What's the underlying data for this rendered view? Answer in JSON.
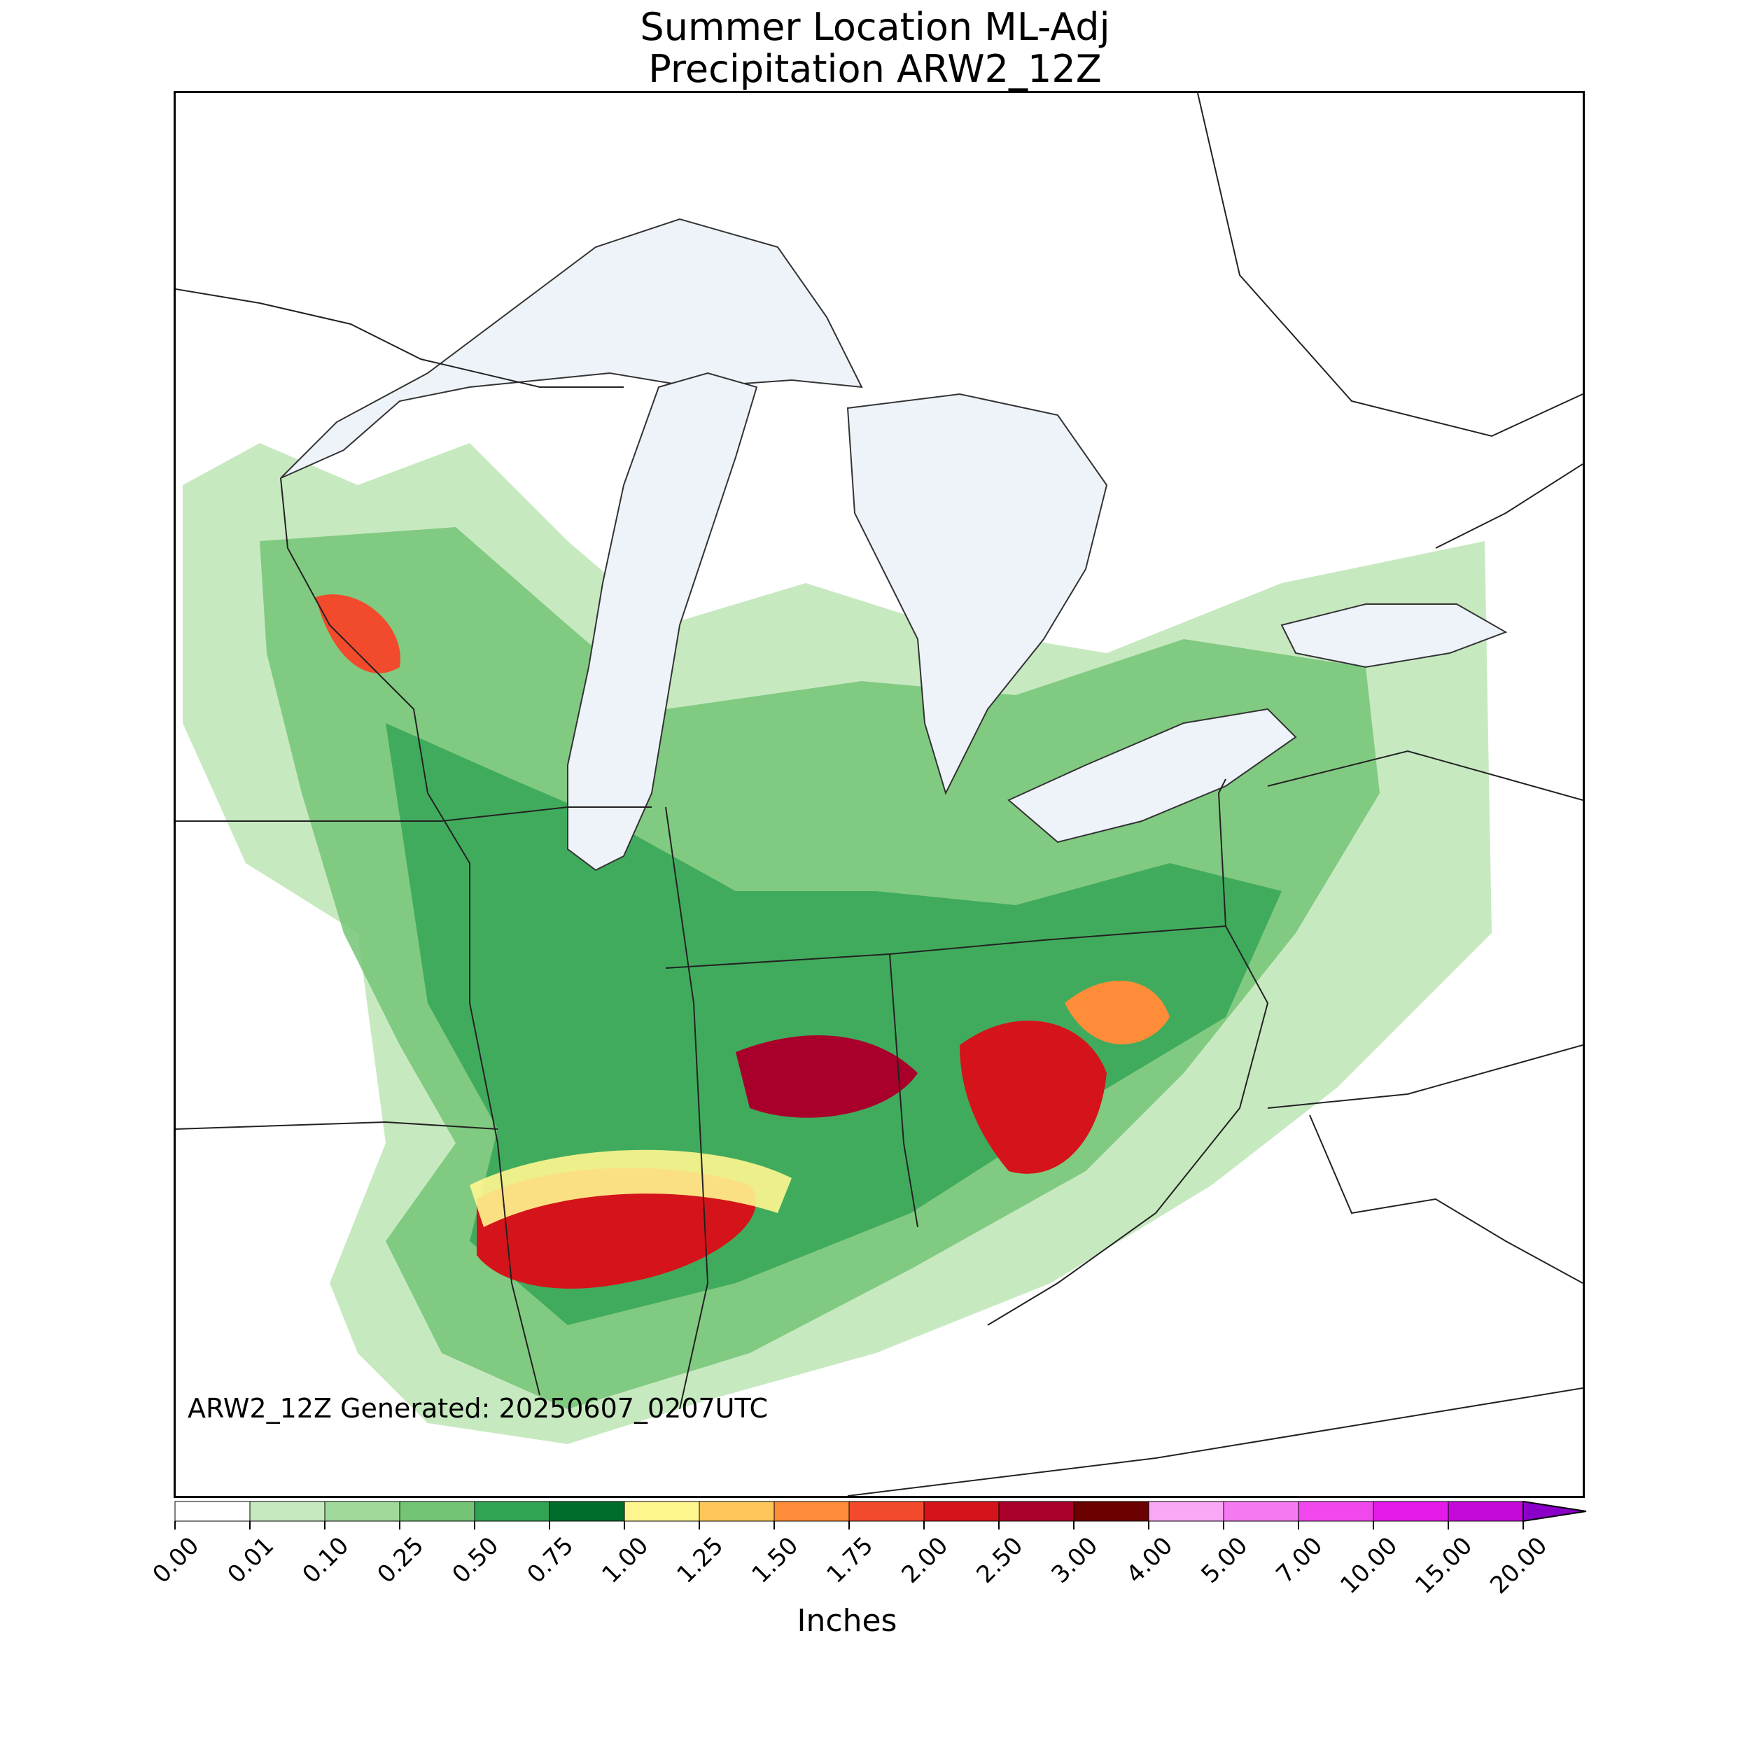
{
  "title": {
    "line1": "Summer Location ML-Adj",
    "line2": "Precipitation ARW2_12Z"
  },
  "footer": {
    "generated": "ARW2_12Z Generated: 20250607_0207UTC"
  },
  "colorbar": {
    "label": "Inches",
    "ticks": [
      "0.00",
      "0.01",
      "0.10",
      "0.25",
      "0.50",
      "0.75",
      "1.00",
      "1.25",
      "1.50",
      "1.75",
      "2.00",
      "2.50",
      "3.00",
      "4.00",
      "5.00",
      "7.00",
      "10.00",
      "15.00",
      "20.00"
    ],
    "colors": [
      "#ffffff",
      "#c7e9c0",
      "#a1d99b",
      "#74c476",
      "#31a354",
      "#006d2c",
      "#fff68f",
      "#ffc65c",
      "#ff8c38",
      "#f24a2c",
      "#d4141a",
      "#a8002a",
      "#6b0000",
      "#f9a8f5",
      "#f57af2",
      "#f048ec",
      "#e41ae8",
      "#c40ad8",
      "#8a00c8"
    ],
    "extend_color": "#4b0082"
  },
  "map": {
    "lake_color": "#eef3fa",
    "border_color": "#222222"
  }
}
